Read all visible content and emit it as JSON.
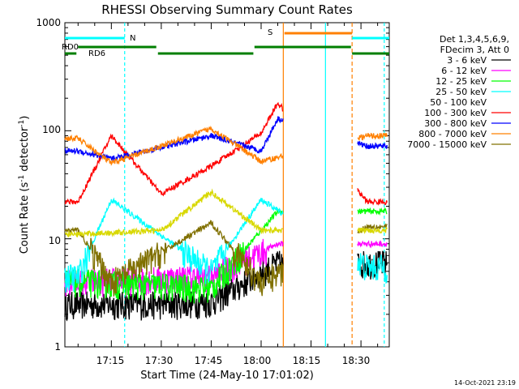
{
  "chart_data": {
    "type": "line",
    "title": "RHESSI Observing Summary Count Rates",
    "xlabel": "Start Time (24-May-10 17:01:02)",
    "ylabel_main": "Count Rate (s",
    "ylabel_sup1": "-1",
    "ylabel_mid": " detector",
    "ylabel_sup2": "-1",
    "ylabel_end": ")",
    "x_ticks": [
      "17:15",
      "17:30",
      "17:45",
      "18:00",
      "18:15",
      "18:30"
    ],
    "y_ticks": [
      "1",
      "10",
      "100",
      "1000"
    ],
    "y_scale": "log",
    "ylim": [
      1,
      1000
    ],
    "xlim": [
      "17:01:02",
      "18:38:30"
    ],
    "footer": "14-Oct-2021 23:19",
    "legend_header": [
      "Det 1,3,4,5,6,9,",
      "FDecim 3, Att 0"
    ],
    "flags": [
      {
        "label": "N",
        "color": "#00ffff"
      },
      {
        "label": "S",
        "color": "#ff8000"
      },
      {
        "label": "RD0",
        "color": "#007f00"
      },
      {
        "label": "RD6",
        "color": "#007f00"
      }
    ],
    "series": [
      {
        "name": "3 - 6 keV",
        "color": "#000000",
        "approx_values": [
          {
            "t": "17:30",
            "y": 2.5
          },
          {
            "t": "17:45",
            "y": 2.6
          },
          {
            "t": "18:05",
            "y": 6.0
          }
        ]
      },
      {
        "name": "6 - 12 keV",
        "color": "#ff00ff",
        "approx_values": [
          {
            "t": "17:05",
            "y": 4.0
          },
          {
            "t": "17:45",
            "y": 4.5
          },
          {
            "t": "18:05",
            "y": 9.0
          }
        ]
      },
      {
        "name": "12 - 25 keV",
        "color": "#00ff00",
        "approx_values": [
          {
            "t": "17:10",
            "y": 4.0
          },
          {
            "t": "17:45",
            "y": 3.5
          },
          {
            "t": "18:05",
            "y": 18.0
          }
        ]
      },
      {
        "name": "25 - 50 keV",
        "color": "#00ffff",
        "approx_values": [
          {
            "t": "17:05",
            "y": 4.5
          },
          {
            "t": "17:15",
            "y": 23.0
          },
          {
            "t": "17:45",
            "y": 5.0
          },
          {
            "t": "18:00",
            "y": 23.0
          },
          {
            "t": "18:32",
            "y": 5.5
          }
        ]
      },
      {
        "name": "50 - 100 keV",
        "color": "#ffffff",
        "approx_values": []
      },
      {
        "name": "100 - 300 keV",
        "color": "#ff0000",
        "approx_values": [
          {
            "t": "17:05",
            "y": 22.0
          },
          {
            "t": "17:15",
            "y": 90.0
          },
          {
            "t": "17:30",
            "y": 26.0
          },
          {
            "t": "17:45",
            "y": 47.0
          },
          {
            "t": "18:00",
            "y": 95.0
          },
          {
            "t": "18:05",
            "y": 180.0
          },
          {
            "t": "18:32",
            "y": 22.0
          }
        ]
      },
      {
        "name": "300 - 800 keV",
        "color": "#0000ff",
        "approx_values": [
          {
            "t": "17:05",
            "y": 65.0
          },
          {
            "t": "17:15",
            "y": 55.0
          },
          {
            "t": "17:45",
            "y": 90.0
          },
          {
            "t": "18:00",
            "y": 65.0
          },
          {
            "t": "18:05",
            "y": 130.0
          },
          {
            "t": "18:32",
            "y": 72.0
          }
        ]
      },
      {
        "name": "800 - 7000 keV",
        "color": "#ff8000",
        "approx_values": [
          {
            "t": "17:05",
            "y": 85.0
          },
          {
            "t": "17:15",
            "y": 50.0
          },
          {
            "t": "17:45",
            "y": 105.0
          },
          {
            "t": "18:00",
            "y": 52.0
          },
          {
            "t": "18:32",
            "y": 90.0
          }
        ]
      },
      {
        "name": "7000 - 15000 keV",
        "color": "#807000",
        "approx_values": [
          {
            "t": "17:05",
            "y": 12.0
          },
          {
            "t": "17:15",
            "y": 4.0
          },
          {
            "t": "17:45",
            "y": 14.0
          },
          {
            "t": "18:00",
            "y": 4.0
          },
          {
            "t": "18:32",
            "y": 13.0
          }
        ]
      },
      {
        "name": "yellow (unlabelled)",
        "color": "#d8d800",
        "approx_values": [
          {
            "t": "17:05",
            "y": 11.0
          },
          {
            "t": "17:30",
            "y": 12.0
          },
          {
            "t": "17:45",
            "y": 27.0
          },
          {
            "t": "18:00",
            "y": 12.0
          },
          {
            "t": "18:32",
            "y": 12.0
          }
        ]
      }
    ]
  }
}
